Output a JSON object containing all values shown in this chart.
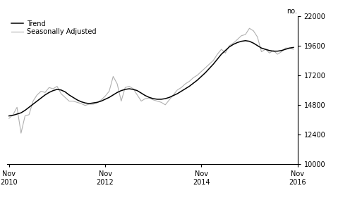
{
  "ylabel": "no.",
  "ylim": [
    10000,
    22000
  ],
  "yticks": [
    10000,
    12400,
    14800,
    17200,
    19600,
    22000
  ],
  "background_color": "#ffffff",
  "trend_color": "#000000",
  "seasonal_color": "#b0b0b0",
  "legend_labels": [
    "Trend",
    "Seasonally Adjusted"
  ],
  "trend": [
    13900,
    13950,
    14050,
    14150,
    14350,
    14600,
    14850,
    15100,
    15350,
    15600,
    15800,
    15950,
    16050,
    16000,
    15850,
    15600,
    15400,
    15200,
    15050,
    14950,
    14900,
    14950,
    15000,
    15100,
    15250,
    15400,
    15600,
    15800,
    15950,
    16050,
    16100,
    16050,
    15950,
    15750,
    15550,
    15400,
    15300,
    15250,
    15250,
    15300,
    15400,
    15550,
    15700,
    15900,
    16100,
    16300,
    16550,
    16800,
    17100,
    17400,
    17750,
    18100,
    18500,
    18900,
    19200,
    19500,
    19700,
    19850,
    19950,
    20000,
    19950,
    19800,
    19600,
    19400,
    19300,
    19200,
    19150,
    19150,
    19200,
    19300,
    19400,
    19450
  ],
  "seasonal": [
    13700,
    14000,
    14600,
    12500,
    13900,
    14000,
    15100,
    15600,
    15900,
    15800,
    16200,
    16100,
    16300,
    15700,
    15400,
    15100,
    15100,
    15000,
    14900,
    14750,
    14850,
    14850,
    14950,
    15200,
    15500,
    15900,
    17100,
    16500,
    15100,
    16200,
    16300,
    16100,
    15600,
    15100,
    15300,
    15350,
    15200,
    15100,
    15000,
    14800,
    15200,
    15600,
    16000,
    16200,
    16500,
    16700,
    17000,
    17200,
    17500,
    17800,
    18100,
    18400,
    18900,
    19300,
    19000,
    19600,
    19800,
    20100,
    20400,
    20500,
    21000,
    20800,
    20300,
    19100,
    19300,
    19000,
    19200,
    18900,
    19100,
    19400,
    19400,
    19300
  ],
  "xtick_positions": [
    0,
    24,
    48,
    72
  ],
  "xtick_labels": [
    "Nov\n2010",
    "Nov\n2012",
    "Nov\n2014",
    "Nov\n2016"
  ]
}
